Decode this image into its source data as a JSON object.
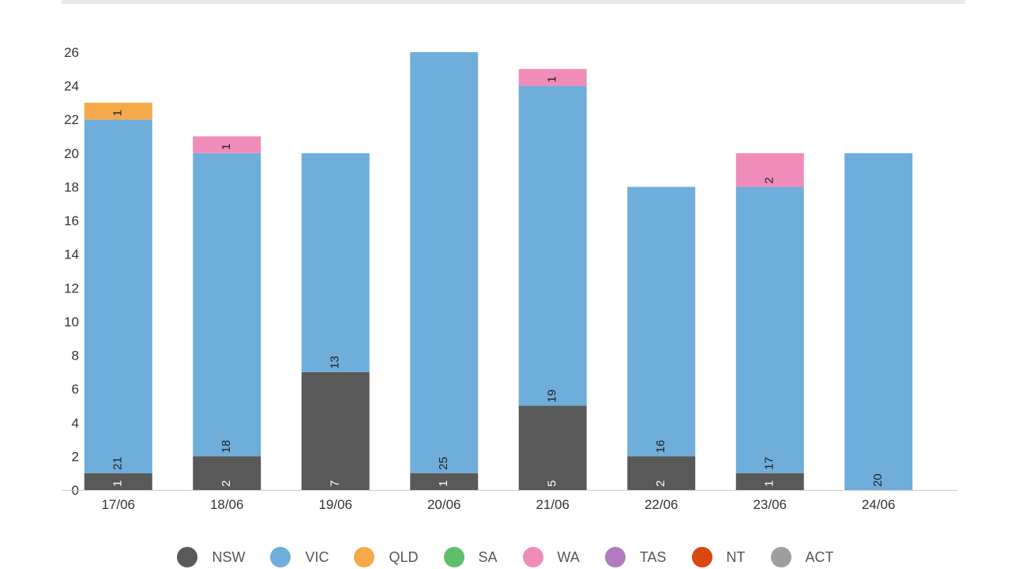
{
  "chart_data": {
    "type": "bar",
    "stacked": true,
    "categories": [
      "17/06",
      "18/06",
      "19/06",
      "20/06",
      "21/06",
      "22/06",
      "23/06",
      "24/06"
    ],
    "yticks": [
      "0",
      "2",
      "4",
      "6",
      "8",
      "10",
      "12",
      "14",
      "16",
      "18",
      "20",
      "22",
      "24",
      "26"
    ],
    "ylim": [
      0,
      26
    ],
    "grid": false,
    "legend_position": "bottom",
    "series": [
      {
        "name": "NSW",
        "color": "#595959",
        "values": [
          1,
          2,
          7,
          1,
          5,
          2,
          1,
          0
        ]
      },
      {
        "name": "VIC",
        "color": "#6fadda",
        "values": [
          21,
          18,
          13,
          25,
          19,
          16,
          17,
          20
        ]
      },
      {
        "name": "QLD",
        "color": "#f5a94a",
        "values": [
          1,
          0,
          0,
          0,
          0,
          0,
          0,
          0
        ]
      },
      {
        "name": "SA",
        "color": "#5fbe6a",
        "values": [
          0,
          0,
          0,
          0,
          0,
          0,
          0,
          0
        ]
      },
      {
        "name": "WA",
        "color": "#f08cba",
        "values": [
          0,
          1,
          0,
          0,
          1,
          0,
          2,
          0
        ]
      },
      {
        "name": "TAS",
        "color": "#b07cbd",
        "values": [
          0,
          0,
          0,
          0,
          0,
          0,
          0,
          0
        ]
      },
      {
        "name": "NT",
        "color": "#d9480f",
        "values": [
          0,
          0,
          0,
          0,
          0,
          0,
          0,
          0
        ]
      },
      {
        "name": "ACT",
        "color": "#9e9e9e",
        "values": [
          0,
          0,
          0,
          0,
          0,
          0,
          0,
          0
        ]
      }
    ]
  }
}
